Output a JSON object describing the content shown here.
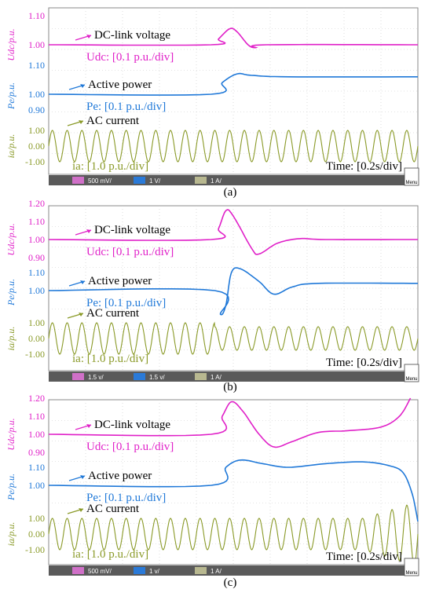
{
  "colors": {
    "voltage": "#e020c8",
    "power": "#1f78d8",
    "current": "#8a9a28",
    "grid": "#c8c8c8",
    "frame": "#8a8a8a",
    "bar": "#5a5a5a",
    "c2": "#d070c8",
    "c3": "#2a7ad8",
    "c4": "#b8b890"
  },
  "panels": [
    {
      "caption": "(a)",
      "time_div": "Time: [0.2s/div]",
      "labels": {
        "voltage_name": "DC-link voltage",
        "voltage_scale": "Udc: [0.1 p.u./div]",
        "voltage_axis": "Udc/p.u.",
        "power_name": "Active power",
        "power_scale": "Pe: [0.1 p.u./div]",
        "power_axis": "Pe/p.u.",
        "current_name": "AC current",
        "current_scale": "ia: [1.0 p.u./div]",
        "current_axis": "ia/p.u."
      },
      "status_bar": {
        "c2": "500 mV/",
        "c3": "1 V/",
        "c4": "1 A/",
        "menu": "Menu"
      },
      "chart_data": {
        "type": "line",
        "x_unit": "s",
        "x_range": [
          0,
          2.0
        ],
        "series": [
          {
            "name": "DC-link voltage",
            "ticks": [
              "1.10",
              "1.00"
            ],
            "tick_values": [
              1.1,
              1.0
            ],
            "points": [
              [
                0,
                1.0
              ],
              [
                0.88,
                1.0
              ],
              [
                0.92,
                1.02
              ],
              [
                0.98,
                1.055
              ],
              [
                1.02,
                1.045
              ],
              [
                1.08,
                1.0
              ],
              [
                1.12,
                0.99
              ],
              [
                1.18,
                1.0
              ],
              [
                2.0,
                1.0
              ]
            ]
          },
          {
            "name": "Active power",
            "ticks": [
              "1.10",
              "1.00"
            ],
            "tick_values": [
              1.1,
              1.0
            ],
            "points": [
              [
                0,
                1.0
              ],
              [
                0.88,
                1.0
              ],
              [
                0.94,
                1.04
              ],
              [
                1.02,
                1.07
              ],
              [
                1.1,
                1.065
              ],
              [
                1.3,
                1.06
              ],
              [
                2.0,
                1.06
              ]
            ]
          },
          {
            "name": "AC current",
            "ticks": [
              "1.00",
              "0.00",
              "-1.00"
            ],
            "tick_values": [
              1.0,
              0.0,
              -1.0
            ],
            "amplitude": 1.0,
            "cycles": 25,
            "after_amplitude": 1.0,
            "start_x": 0.88
          }
        ],
        "extra_ticks": [
          "0.90"
        ]
      }
    },
    {
      "caption": "(b)",
      "time_div": "Time: [0.2s/div]",
      "labels": {
        "voltage_name": "DC-link voltage",
        "voltage_scale": "Udc: [0.1 p.u./div]",
        "voltage_axis": "Udc/p.u.",
        "power_name": "Active power",
        "power_scale": "Pe: [0.1 p.u./div]",
        "power_axis": "Pe/p.u.",
        "current_name": "AC current",
        "current_scale": "ia: [1.0 p.u./div]",
        "current_axis": "ia/p.u."
      },
      "status_bar": {
        "c2": "1.5 v/",
        "c3": "1.5 v/",
        "c4": "1 A/",
        "menu": "Menu"
      },
      "chart_data": {
        "type": "line",
        "x_unit": "s",
        "x_range": [
          0,
          2.0
        ],
        "series": [
          {
            "name": "DC-link voltage",
            "ticks": [
              "1.20",
              "1.10",
              "1.00",
              "0.90"
            ],
            "tick_values": [
              1.2,
              1.1,
              1.0,
              0.9
            ],
            "points": [
              [
                0,
                1.0
              ],
              [
                0.88,
                1.0
              ],
              [
                0.92,
                1.06
              ],
              [
                0.96,
                1.16
              ],
              [
                1.0,
                1.13
              ],
              [
                1.1,
                0.95
              ],
              [
                1.14,
                0.92
              ],
              [
                1.24,
                0.98
              ],
              [
                1.36,
                1.005
              ],
              [
                1.5,
                1.0
              ],
              [
                2.0,
                1.0
              ]
            ]
          },
          {
            "name": "Active power",
            "ticks": [
              "1.10",
              "1.00"
            ],
            "tick_values": [
              1.1,
              1.0
            ],
            "points": [
              [
                0,
                1.0
              ],
              [
                0.9,
                1.0
              ],
              [
                0.93,
                0.87
              ],
              [
                0.96,
                0.92
              ],
              [
                0.99,
                1.1
              ],
              [
                1.04,
                1.12
              ],
              [
                1.14,
                1.05
              ],
              [
                1.22,
                0.98
              ],
              [
                1.32,
                1.02
              ],
              [
                1.46,
                1.04
              ],
              [
                2.0,
                1.04
              ]
            ]
          },
          {
            "name": "AC current",
            "ticks": [
              "1.00",
              "0.00",
              "-1.00"
            ],
            "tick_values": [
              1.0,
              0.0,
              -1.0
            ],
            "amplitude": 1.0,
            "cycles": 25,
            "after_amplitude": 0.75,
            "start_x": 0.9
          }
        ]
      }
    },
    {
      "caption": "(c)",
      "time_div": "Time: [0.2s/div]",
      "labels": {
        "voltage_name": "DC-link voltage",
        "voltage_scale": "Udc: [0.1 p.u./div]",
        "voltage_axis": "Udc/p.u.",
        "power_name": "Active power",
        "power_scale": "Pe: [0.1 p.u./div]",
        "power_axis": "Pe/p.u.",
        "current_name": "AC current",
        "current_scale": "ia: [1.0 p.u./div]",
        "current_axis": "ia/p.u."
      },
      "status_bar": {
        "c2": "500 mV/",
        "c3": "1 v/",
        "c4": "1 A/",
        "menu": "Menu"
      },
      "chart_data": {
        "type": "line",
        "x_unit": "s",
        "x_range": [
          0,
          2.0
        ],
        "series": [
          {
            "name": "DC-link voltage",
            "ticks": [
              "1.20",
              "1.10",
              "1.00",
              "0.90"
            ],
            "tick_values": [
              1.2,
              1.1,
              1.0,
              0.9
            ],
            "points": [
              [
                0,
                1.0
              ],
              [
                0.88,
                1.0
              ],
              [
                0.94,
                1.1
              ],
              [
                0.99,
                1.18
              ],
              [
                1.05,
                1.13
              ],
              [
                1.14,
                1.0
              ],
              [
                1.22,
                0.93
              ],
              [
                1.32,
                0.96
              ],
              [
                1.46,
                1.01
              ],
              [
                1.62,
                1.02
              ],
              [
                1.8,
                1.04
              ],
              [
                1.9,
                1.1
              ],
              [
                1.96,
                1.2
              ]
            ]
          },
          {
            "name": "Active power",
            "ticks": [
              "1.10",
              "1.00"
            ],
            "tick_values": [
              1.1,
              1.0
            ],
            "points": [
              [
                0,
                1.0
              ],
              [
                0.88,
                1.0
              ],
              [
                0.96,
                1.1
              ],
              [
                1.04,
                1.14
              ],
              [
                1.16,
                1.12
              ],
              [
                1.3,
                1.1
              ],
              [
                1.5,
                1.12
              ],
              [
                1.7,
                1.13
              ],
              [
                1.84,
                1.11
              ],
              [
                1.92,
                1.07
              ],
              [
                1.97,
                0.95
              ],
              [
                2.0,
                0.8
              ]
            ]
          },
          {
            "name": "AC current",
            "ticks": [
              "1.00",
              "0.00",
              "-1.00"
            ],
            "tick_values": [
              1.0,
              0.0,
              -1.0
            ],
            "amplitude": 1.0,
            "cycles": 25,
            "after_amplitude": 1.0,
            "start_x": 0.88,
            "end_growth": true
          }
        ]
      }
    }
  ]
}
